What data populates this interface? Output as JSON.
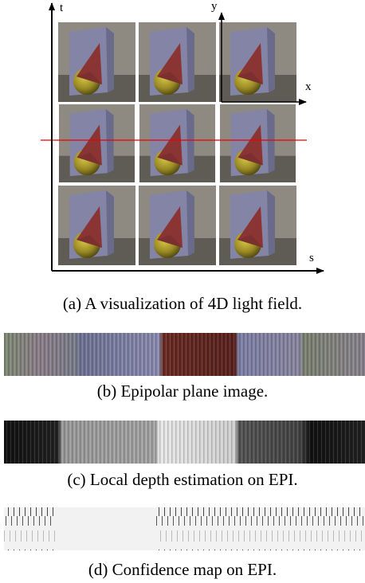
{
  "figure": {
    "axes": {
      "t": "t",
      "s": "s",
      "y": "y",
      "x": "x"
    },
    "captions": [
      "(a) A visualization of 4D light field.",
      "(b) Epipolar plane image.",
      "(c) Local depth estimation on EPI.",
      "(d) Confidence map on EPI."
    ]
  }
}
